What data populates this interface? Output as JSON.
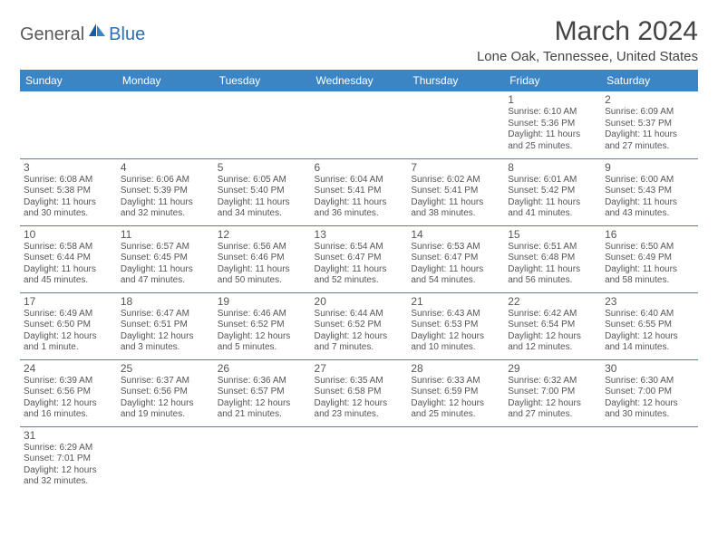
{
  "logo": {
    "general": "General",
    "blue": "Blue"
  },
  "title": "March 2024",
  "location": "Lone Oak, Tennessee, United States",
  "colors": {
    "header_bg": "#3b85c5",
    "header_text": "#ffffff",
    "border": "#3b85c5",
    "text": "#555555",
    "title_text": "#444444",
    "logo_gray": "#5a5a5a",
    "logo_blue": "#2b6fb5"
  },
  "day_headers": [
    "Sunday",
    "Monday",
    "Tuesday",
    "Wednesday",
    "Thursday",
    "Friday",
    "Saturday"
  ],
  "weeks": [
    [
      null,
      null,
      null,
      null,
      null,
      {
        "n": "1",
        "sr": "Sunrise: 6:10 AM",
        "ss": "Sunset: 5:36 PM",
        "d1": "Daylight: 11 hours",
        "d2": "and 25 minutes."
      },
      {
        "n": "2",
        "sr": "Sunrise: 6:09 AM",
        "ss": "Sunset: 5:37 PM",
        "d1": "Daylight: 11 hours",
        "d2": "and 27 minutes."
      }
    ],
    [
      {
        "n": "3",
        "sr": "Sunrise: 6:08 AM",
        "ss": "Sunset: 5:38 PM",
        "d1": "Daylight: 11 hours",
        "d2": "and 30 minutes."
      },
      {
        "n": "4",
        "sr": "Sunrise: 6:06 AM",
        "ss": "Sunset: 5:39 PM",
        "d1": "Daylight: 11 hours",
        "d2": "and 32 minutes."
      },
      {
        "n": "5",
        "sr": "Sunrise: 6:05 AM",
        "ss": "Sunset: 5:40 PM",
        "d1": "Daylight: 11 hours",
        "d2": "and 34 minutes."
      },
      {
        "n": "6",
        "sr": "Sunrise: 6:04 AM",
        "ss": "Sunset: 5:41 PM",
        "d1": "Daylight: 11 hours",
        "d2": "and 36 minutes."
      },
      {
        "n": "7",
        "sr": "Sunrise: 6:02 AM",
        "ss": "Sunset: 5:41 PM",
        "d1": "Daylight: 11 hours",
        "d2": "and 38 minutes."
      },
      {
        "n": "8",
        "sr": "Sunrise: 6:01 AM",
        "ss": "Sunset: 5:42 PM",
        "d1": "Daylight: 11 hours",
        "d2": "and 41 minutes."
      },
      {
        "n": "9",
        "sr": "Sunrise: 6:00 AM",
        "ss": "Sunset: 5:43 PM",
        "d1": "Daylight: 11 hours",
        "d2": "and 43 minutes."
      }
    ],
    [
      {
        "n": "10",
        "sr": "Sunrise: 6:58 AM",
        "ss": "Sunset: 6:44 PM",
        "d1": "Daylight: 11 hours",
        "d2": "and 45 minutes."
      },
      {
        "n": "11",
        "sr": "Sunrise: 6:57 AM",
        "ss": "Sunset: 6:45 PM",
        "d1": "Daylight: 11 hours",
        "d2": "and 47 minutes."
      },
      {
        "n": "12",
        "sr": "Sunrise: 6:56 AM",
        "ss": "Sunset: 6:46 PM",
        "d1": "Daylight: 11 hours",
        "d2": "and 50 minutes."
      },
      {
        "n": "13",
        "sr": "Sunrise: 6:54 AM",
        "ss": "Sunset: 6:47 PM",
        "d1": "Daylight: 11 hours",
        "d2": "and 52 minutes."
      },
      {
        "n": "14",
        "sr": "Sunrise: 6:53 AM",
        "ss": "Sunset: 6:47 PM",
        "d1": "Daylight: 11 hours",
        "d2": "and 54 minutes."
      },
      {
        "n": "15",
        "sr": "Sunrise: 6:51 AM",
        "ss": "Sunset: 6:48 PM",
        "d1": "Daylight: 11 hours",
        "d2": "and 56 minutes."
      },
      {
        "n": "16",
        "sr": "Sunrise: 6:50 AM",
        "ss": "Sunset: 6:49 PM",
        "d1": "Daylight: 11 hours",
        "d2": "and 58 minutes."
      }
    ],
    [
      {
        "n": "17",
        "sr": "Sunrise: 6:49 AM",
        "ss": "Sunset: 6:50 PM",
        "d1": "Daylight: 12 hours",
        "d2": "and 1 minute."
      },
      {
        "n": "18",
        "sr": "Sunrise: 6:47 AM",
        "ss": "Sunset: 6:51 PM",
        "d1": "Daylight: 12 hours",
        "d2": "and 3 minutes."
      },
      {
        "n": "19",
        "sr": "Sunrise: 6:46 AM",
        "ss": "Sunset: 6:52 PM",
        "d1": "Daylight: 12 hours",
        "d2": "and 5 minutes."
      },
      {
        "n": "20",
        "sr": "Sunrise: 6:44 AM",
        "ss": "Sunset: 6:52 PM",
        "d1": "Daylight: 12 hours",
        "d2": "and 7 minutes."
      },
      {
        "n": "21",
        "sr": "Sunrise: 6:43 AM",
        "ss": "Sunset: 6:53 PM",
        "d1": "Daylight: 12 hours",
        "d2": "and 10 minutes."
      },
      {
        "n": "22",
        "sr": "Sunrise: 6:42 AM",
        "ss": "Sunset: 6:54 PM",
        "d1": "Daylight: 12 hours",
        "d2": "and 12 minutes."
      },
      {
        "n": "23",
        "sr": "Sunrise: 6:40 AM",
        "ss": "Sunset: 6:55 PM",
        "d1": "Daylight: 12 hours",
        "d2": "and 14 minutes."
      }
    ],
    [
      {
        "n": "24",
        "sr": "Sunrise: 6:39 AM",
        "ss": "Sunset: 6:56 PM",
        "d1": "Daylight: 12 hours",
        "d2": "and 16 minutes."
      },
      {
        "n": "25",
        "sr": "Sunrise: 6:37 AM",
        "ss": "Sunset: 6:56 PM",
        "d1": "Daylight: 12 hours",
        "d2": "and 19 minutes."
      },
      {
        "n": "26",
        "sr": "Sunrise: 6:36 AM",
        "ss": "Sunset: 6:57 PM",
        "d1": "Daylight: 12 hours",
        "d2": "and 21 minutes."
      },
      {
        "n": "27",
        "sr": "Sunrise: 6:35 AM",
        "ss": "Sunset: 6:58 PM",
        "d1": "Daylight: 12 hours",
        "d2": "and 23 minutes."
      },
      {
        "n": "28",
        "sr": "Sunrise: 6:33 AM",
        "ss": "Sunset: 6:59 PM",
        "d1": "Daylight: 12 hours",
        "d2": "and 25 minutes."
      },
      {
        "n": "29",
        "sr": "Sunrise: 6:32 AM",
        "ss": "Sunset: 7:00 PM",
        "d1": "Daylight: 12 hours",
        "d2": "and 27 minutes."
      },
      {
        "n": "30",
        "sr": "Sunrise: 6:30 AM",
        "ss": "Sunset: 7:00 PM",
        "d1": "Daylight: 12 hours",
        "d2": "and 30 minutes."
      }
    ],
    [
      {
        "n": "31",
        "sr": "Sunrise: 6:29 AM",
        "ss": "Sunset: 7:01 PM",
        "d1": "Daylight: 12 hours",
        "d2": "and 32 minutes."
      },
      null,
      null,
      null,
      null,
      null,
      null
    ]
  ]
}
